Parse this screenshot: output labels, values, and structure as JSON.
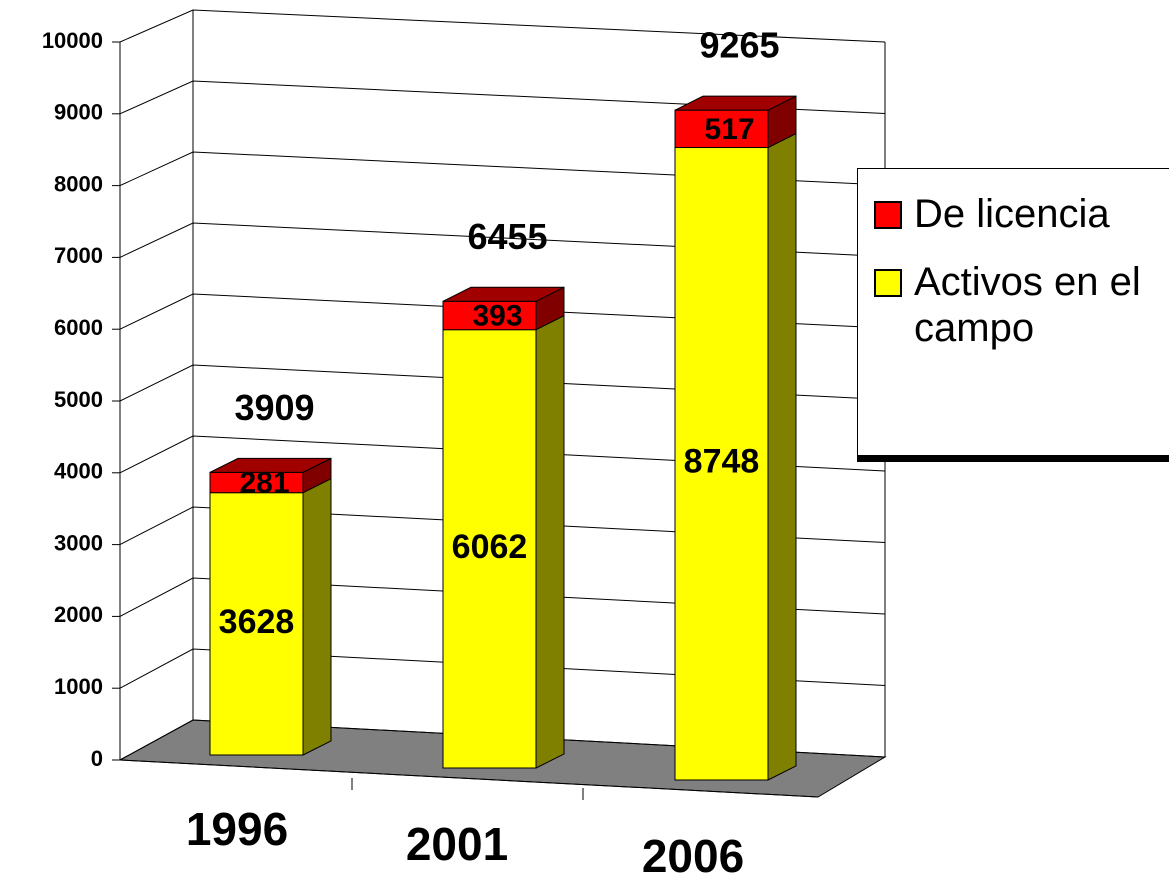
{
  "chart_data": {
    "type": "bar3d_stacked",
    "categories": [
      "1996",
      "2001",
      "2006"
    ],
    "series": [
      {
        "name": "Activos en el campo",
        "color": "#ffff00",
        "values": [
          3628,
          6062,
          8748
        ]
      },
      {
        "name": "De licencia",
        "color": "#ff0000",
        "values": [
          281,
          393,
          517
        ]
      }
    ],
    "totals": [
      3909,
      6455,
      9265
    ],
    "ylim": [
      0,
      10000
    ],
    "yticks": [
      0,
      1000,
      2000,
      3000,
      4000,
      5000,
      6000,
      7000,
      8000,
      9000,
      10000
    ],
    "grid": true,
    "legend": "right"
  }
}
